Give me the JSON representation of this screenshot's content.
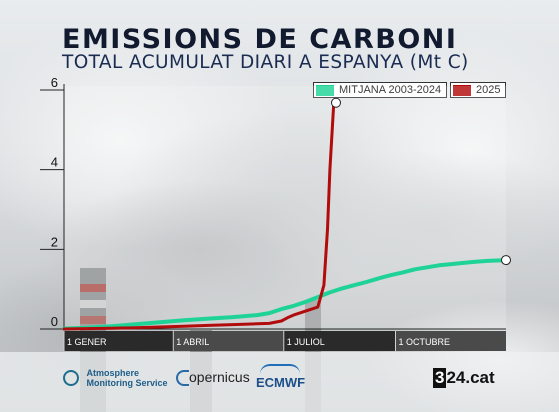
{
  "title": "EMISSIONS DE CARBONI",
  "subtitle": "TOTAL ACUMULAT DIARI A ESPANYA (Mt C)",
  "colors": {
    "mitjana": "#1fd396",
    "y2025": "#b20b0b",
    "title": "#111a2e",
    "subtitle": "#1a2c52",
    "axis_band": "#3a3a3a"
  },
  "chart_data": {
    "type": "line",
    "title": "EMISSIONS DE CARBONI",
    "subtitle": "TOTAL ACUMULAT DIARI A ESPANYA (Mt C)",
    "xlabel": "",
    "ylabel": "",
    "x_unit": "day of year",
    "xlim": [
      1,
      365
    ],
    "ylim": [
      0,
      6
    ],
    "y_ticks": [
      0,
      2,
      4,
      6
    ],
    "x_tick_labels": [
      "1 GENER",
      "1 ABRIL",
      "1 JULIOL",
      "1 OCTUBRE"
    ],
    "x_tick_days": [
      1,
      91,
      182,
      274
    ],
    "legend_position": "top-right",
    "grid": false,
    "series": [
      {
        "name": "MITJANA 2003-2024",
        "color": "#1fd396",
        "end_marker": true,
        "points": [
          [
            1,
            0.01
          ],
          [
            20,
            0.03
          ],
          [
            40,
            0.07
          ],
          [
            60,
            0.12
          ],
          [
            80,
            0.17
          ],
          [
            100,
            0.22
          ],
          [
            120,
            0.26
          ],
          [
            140,
            0.3
          ],
          [
            160,
            0.35
          ],
          [
            170,
            0.4
          ],
          [
            180,
            0.5
          ],
          [
            190,
            0.58
          ],
          [
            200,
            0.68
          ],
          [
            210,
            0.8
          ],
          [
            220,
            0.92
          ],
          [
            230,
            1.02
          ],
          [
            240,
            1.1
          ],
          [
            250,
            1.18
          ],
          [
            260,
            1.27
          ],
          [
            270,
            1.35
          ],
          [
            280,
            1.42
          ],
          [
            290,
            1.5
          ],
          [
            300,
            1.55
          ],
          [
            310,
            1.6
          ],
          [
            320,
            1.63
          ],
          [
            330,
            1.66
          ],
          [
            340,
            1.69
          ],
          [
            350,
            1.71
          ],
          [
            365,
            1.73
          ]
        ]
      },
      {
        "name": "2025",
        "color": "#b20b0b",
        "end_marker": true,
        "points": [
          [
            1,
            0.0
          ],
          [
            20,
            0.01
          ],
          [
            40,
            0.02
          ],
          [
            60,
            0.03
          ],
          [
            80,
            0.05
          ],
          [
            100,
            0.07
          ],
          [
            120,
            0.09
          ],
          [
            140,
            0.11
          ],
          [
            160,
            0.13
          ],
          [
            170,
            0.14
          ],
          [
            180,
            0.2
          ],
          [
            185,
            0.28
          ],
          [
            190,
            0.35
          ],
          [
            200,
            0.45
          ],
          [
            210,
            0.55
          ],
          [
            215,
            1.1
          ],
          [
            218,
            2.5
          ],
          [
            220,
            4.0
          ],
          [
            223,
            5.6
          ],
          [
            225,
            5.68
          ]
        ]
      }
    ]
  },
  "footer": {
    "logo1": "Atmosphere Monitoring Service",
    "logo2": "opernicus",
    "logo3": "ECMWF",
    "logo4": "3",
    "logo4_rest": "24.cat"
  }
}
